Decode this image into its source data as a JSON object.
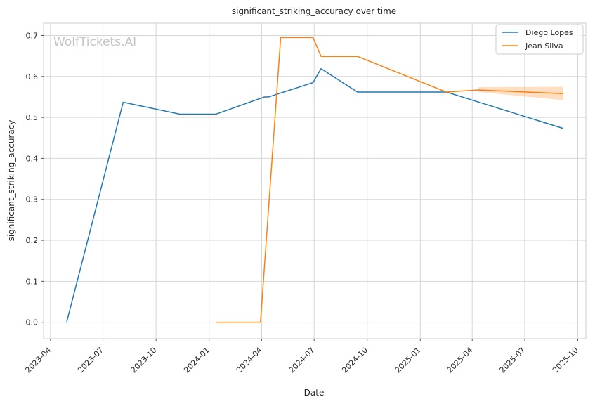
{
  "chart_data": {
    "type": "line",
    "title": "significant_striking_accuracy over time",
    "xlabel": "Date",
    "ylabel": "significant_striking_accuracy",
    "watermark": "WolfTickets.AI",
    "xlim": [
      "2023-03-20",
      "2025-10-15"
    ],
    "ylim": [
      -0.04,
      0.73
    ],
    "x_ticks": [
      "2023-04-01",
      "2023-07-01",
      "2023-10-01",
      "2024-01-01",
      "2024-04-01",
      "2024-07-01",
      "2024-10-01",
      "2025-01-01",
      "2025-04-01",
      "2025-07-01",
      "2025-10-01"
    ],
    "x_tick_labels": [
      "2023-04",
      "2023-07",
      "2023-10",
      "2024-01",
      "2024-04",
      "2024-07",
      "2024-10",
      "2025-01",
      "2025-04",
      "2025-07",
      "2025-10"
    ],
    "y_ticks": [
      0.0,
      0.1,
      0.2,
      0.3,
      0.4,
      0.5,
      0.6,
      0.7
    ],
    "y_tick_labels": [
      "0.0",
      "0.1",
      "0.2",
      "0.3",
      "0.4",
      "0.5",
      "0.6",
      "0.7"
    ],
    "grid": true,
    "legend_position": "top-right",
    "series": [
      {
        "name": "Diego Lopes",
        "color": "#1f77b4",
        "points": [
          {
            "x": "2023-04-29",
            "y": 0.0
          },
          {
            "x": "2023-08-05",
            "y": 0.537
          },
          {
            "x": "2023-11-11",
            "y": 0.508
          },
          {
            "x": "2024-01-13",
            "y": 0.508
          },
          {
            "x": "2024-04-06",
            "y": 0.55
          },
          {
            "x": "2024-04-13",
            "y": 0.55
          },
          {
            "x": "2024-06-29",
            "y": 0.585
          },
          {
            "x": "2024-07-13",
            "y": 0.619
          },
          {
            "x": "2024-09-14",
            "y": 0.562
          },
          {
            "x": "2025-02-15",
            "y": 0.562
          },
          {
            "x": "2025-09-06",
            "y": 0.473
          }
        ],
        "band": [
          {
            "x": "2024-06-29",
            "low": 0.55,
            "high": 0.585
          }
        ]
      },
      {
        "name": "Jean Silva",
        "color": "#ff7f0e",
        "points": [
          {
            "x": "2024-01-13",
            "y": 0.0
          },
          {
            "x": "2024-03-30",
            "y": 0.0
          },
          {
            "x": "2024-05-04",
            "y": 0.695
          },
          {
            "x": "2024-06-29",
            "y": 0.695
          },
          {
            "x": "2024-07-13",
            "y": 0.649
          },
          {
            "x": "2024-09-14",
            "y": 0.649
          },
          {
            "x": "2025-02-15",
            "y": 0.562
          },
          {
            "x": "2025-04-12",
            "y": 0.567
          },
          {
            "x": "2025-09-06",
            "y": 0.558
          }
        ],
        "band": [
          {
            "x": "2025-04-12",
            "low": 0.562,
            "high": 0.574
          },
          {
            "x": "2025-09-06",
            "low": 0.542,
            "high": 0.575
          }
        ]
      }
    ]
  }
}
